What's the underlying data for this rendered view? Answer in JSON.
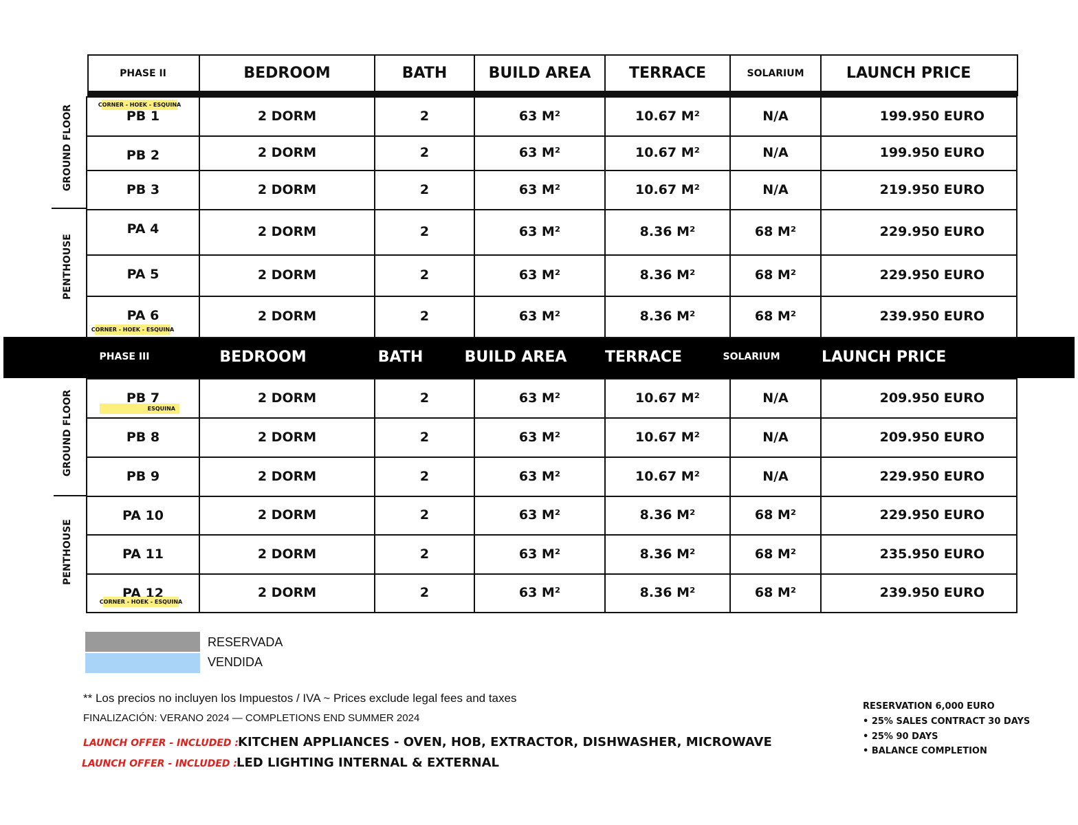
{
  "headers": {
    "phase2": [
      "PHASE II",
      "BEDROOM",
      "BATH",
      "BUILD AREA",
      "TERRACE",
      "SOLARIUM",
      "LAUNCH PRICE"
    ],
    "phase3": [
      "PHASE III",
      "BEDROOM",
      "BATH",
      "BUILD AREA",
      "TERRACE",
      "SOLARIUM",
      "LAUNCH PRICE"
    ]
  },
  "sections": {
    "ground_floor": "GROUND FLOOR",
    "penthouse": "PENTHOUSE"
  },
  "phase2_rows": [
    {
      "unit": "PB 1",
      "bedroom": "2 DORM",
      "bath": "2",
      "build": "63 M²",
      "terrace": "10.67 M²",
      "solarium": "N/A",
      "price": "199.950 EURO",
      "tag": "CORNER - HOEK - ESQUINA"
    },
    {
      "unit": "PB 2",
      "bedroom": "2 DORM",
      "bath": "2",
      "build": "63 M²",
      "terrace": "10.67 M²",
      "solarium": "N/A",
      "price": "199.950 EURO"
    },
    {
      "unit": "PB 3",
      "bedroom": "2 DORM",
      "bath": "2",
      "build": "63 M²",
      "terrace": "10.67 M²",
      "solarium": "N/A",
      "price": "219.950 EURO"
    },
    {
      "unit": "PA 4",
      "bedroom": "2 DORM",
      "bath": "2",
      "build": "63 M²",
      "terrace": "8.36 M²",
      "solarium": "68 M²",
      "price": "229.950 EURO"
    },
    {
      "unit": "PA 5",
      "bedroom": "2 DORM",
      "bath": "2",
      "build": "63 M²",
      "terrace": "8.36 M²",
      "solarium": "68 M²",
      "price": "229.950 EURO"
    },
    {
      "unit": "PA 6",
      "bedroom": "2 DORM",
      "bath": "2",
      "build": "63 M²",
      "terrace": "8.36 M²",
      "solarium": "68 M²",
      "price": "239.950 EURO",
      "tag": "CORNER - HOEK - ESQUINA"
    }
  ],
  "phase3_rows": [
    {
      "unit": "PB 7",
      "bedroom": "2 DORM",
      "bath": "2",
      "build": "63 M²",
      "terrace": "10.67 M²",
      "solarium": "N/A",
      "price": "209.950 EURO",
      "tag": "ESQUINA"
    },
    {
      "unit": "PB 8",
      "bedroom": "2 DORM",
      "bath": "2",
      "build": "63 M²",
      "terrace": "10.67 M²",
      "solarium": "N/A",
      "price": "209.950 EURO"
    },
    {
      "unit": "PB 9",
      "bedroom": "2 DORM",
      "bath": "2",
      "build": "63 M²",
      "terrace": "10.67 M²",
      "solarium": "N/A",
      "price": "229.950 EURO"
    },
    {
      "unit": "PA 10",
      "bedroom": "2 DORM",
      "bath": "2",
      "build": "63 M²",
      "terrace": "8.36 M²",
      "solarium": "68 M²",
      "price": "229.950 EURO"
    },
    {
      "unit": "PA 11",
      "bedroom": "2 DORM",
      "bath": "2",
      "build": "63 M²",
      "terrace": "8.36 M²",
      "solarium": "68 M²",
      "price": "235.950 EURO"
    },
    {
      "unit": "PA 12",
      "bedroom": "2 DORM",
      "bath": "2",
      "build": "63 M²",
      "terrace": "8.36 M²",
      "solarium": "68 M²",
      "price": "239.950 EURO",
      "tag": "CORNER - HOEK - ESQUINA"
    }
  ],
  "legend": [
    {
      "label": "RESERVADA",
      "color": "#9a9a9a"
    },
    {
      "label": "VENDIDA",
      "color": "#a9d3f7"
    }
  ],
  "notes": {
    "taxes": "** Los precios no incluyen los Impuestos / IVA ~ Prices exclude legal fees and taxes",
    "completion": "FINALIZACIÓN: VERANO 2024 — COMPLETIONS END SUMMER 2024",
    "offers": [
      {
        "prefix": "LAUNCH OFFER - INCLUDED ::",
        "text": "KITCHEN APPLIANCES - OVEN, HOB, EXTRACTOR, DISHWASHER, MICROWAVE"
      },
      {
        "prefix": "LAUNCH OFFER - INCLUDED ::",
        "text": "LED LIGHTING INTERNAL & EXTERNAL"
      }
    ],
    "offer_color": "#e0201b"
  },
  "payment": {
    "title": "RESERVATION 6,000 EURO",
    "items": [
      "• 25% SALES CONTRACT 30 DAYS",
      "• 25% 90 DAYS",
      "• BALANCE COMPLETION"
    ]
  }
}
